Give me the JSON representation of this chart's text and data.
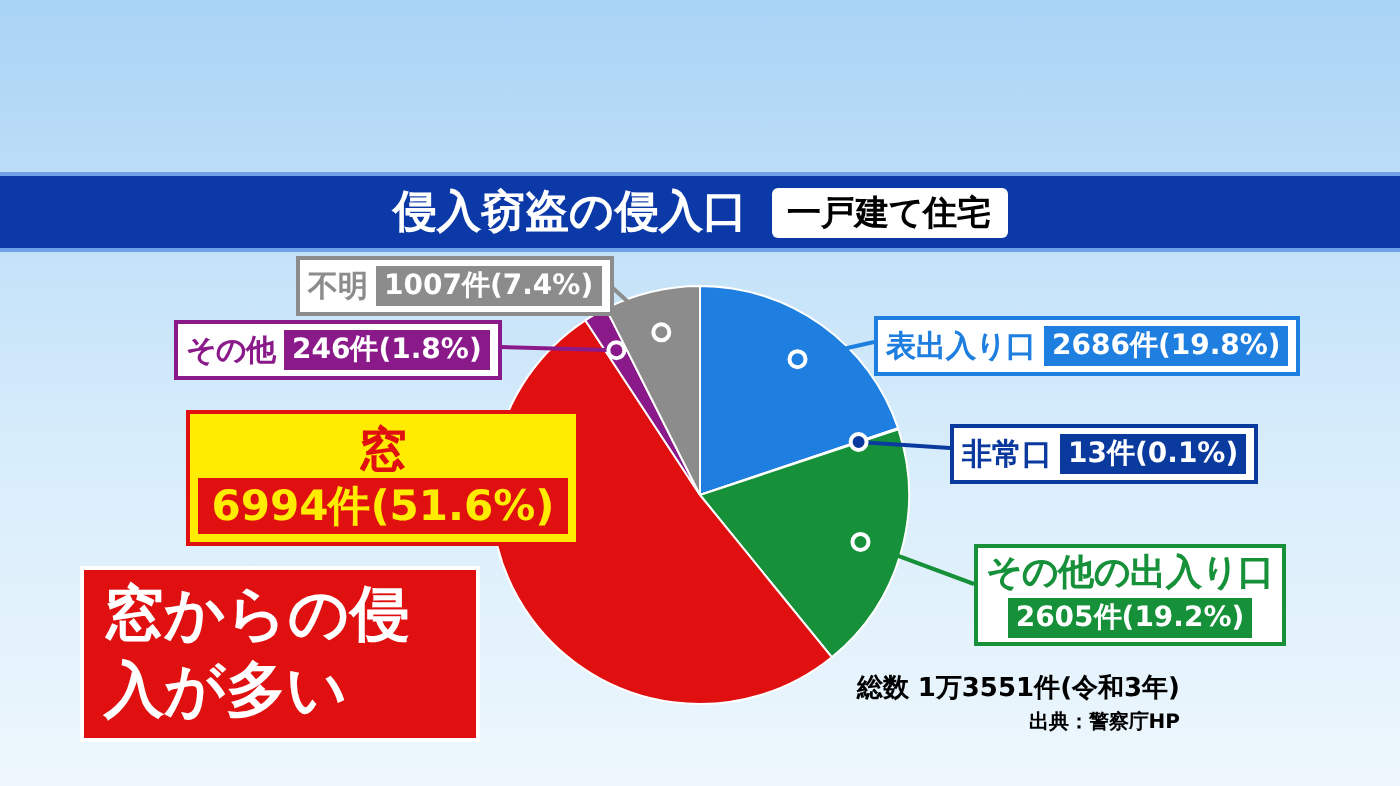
{
  "chart_data": {
    "type": "pie",
    "title": "侵入窃盗の侵入口",
    "subtitle": "一戸建て住宅",
    "categories": [
      "表出入り口",
      "非常口",
      "その他の出入り口",
      "窓",
      "その他",
      "不明"
    ],
    "values": [
      2686,
      13,
      2605,
      6994,
      246,
      1007
    ],
    "colors": [
      "#1e7fe0",
      "#0b3a9e",
      "#16913a",
      "#e01010",
      "#8a1a8a",
      "#8c8c8c"
    ],
    "value_labels": [
      "2686件(19.8%)",
      "13件(0.1%)",
      "2605件(19.2%)",
      "6994件(51.6%)",
      "246件(1.8%)",
      "1007件(7.4%)"
    ],
    "annotations": [
      "窓からの侵入が多い",
      "総数 1万3551件(令和3年)",
      "出典：警察庁HP"
    ]
  }
}
